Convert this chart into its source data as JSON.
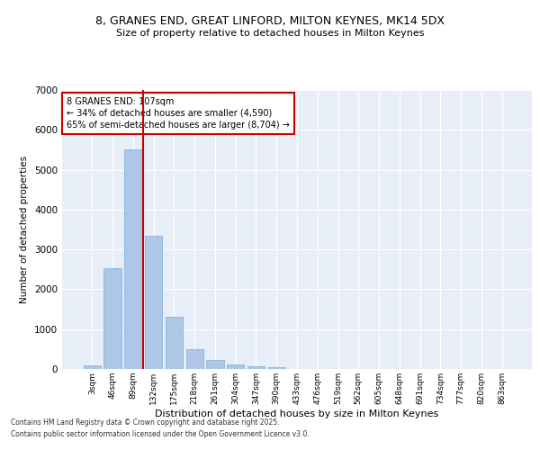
{
  "title_line1": "8, GRANES END, GREAT LINFORD, MILTON KEYNES, MK14 5DX",
  "title_line2": "Size of property relative to detached houses in Milton Keynes",
  "xlabel": "Distribution of detached houses by size in Milton Keynes",
  "ylabel": "Number of detached properties",
  "bar_color": "#aec6e8",
  "bar_edge_color": "#7aafd4",
  "background_color": "#e8eef8",
  "categories": [
    "3sqm",
    "46sqm",
    "89sqm",
    "132sqm",
    "175sqm",
    "218sqm",
    "261sqm",
    "304sqm",
    "347sqm",
    "390sqm",
    "433sqm",
    "476sqm",
    "519sqm",
    "562sqm",
    "605sqm",
    "648sqm",
    "691sqm",
    "734sqm",
    "777sqm",
    "820sqm",
    "863sqm"
  ],
  "values": [
    100,
    2520,
    5510,
    3340,
    1300,
    490,
    220,
    120,
    65,
    35,
    10,
    5,
    2,
    0,
    0,
    0,
    0,
    0,
    0,
    0,
    0
  ],
  "ylim": [
    0,
    7000
  ],
  "yticks": [
    0,
    1000,
    2000,
    3000,
    4000,
    5000,
    6000,
    7000
  ],
  "property_label": "8 GRANES END: 107sqm",
  "pct_smaller": "34%",
  "n_smaller": "4,590",
  "pct_larger": "65%",
  "n_larger": "8,704",
  "annotation_box_color": "#cc0000",
  "vline_color": "#cc0000",
  "vline_x_index": 2.5,
  "footer_line1": "Contains HM Land Registry data © Crown copyright and database right 2025.",
  "footer_line2": "Contains public sector information licensed under the Open Government Licence v3.0."
}
